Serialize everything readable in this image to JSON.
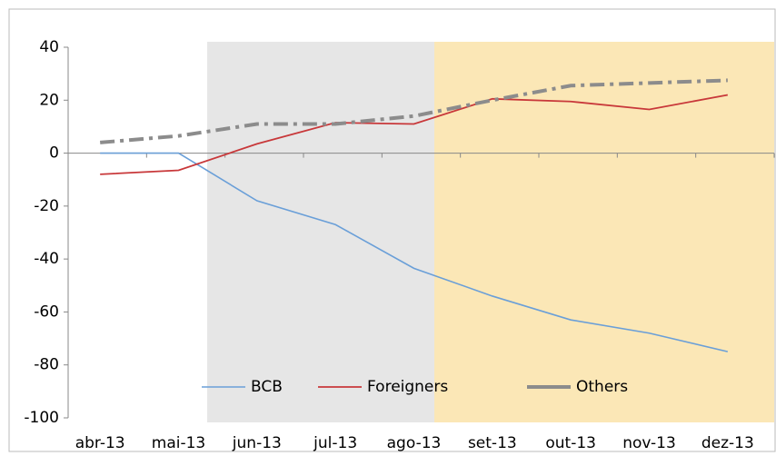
{
  "chart_data": {
    "type": "line",
    "categories": [
      "abr-13",
      "mai-13",
      "jun-13",
      "jul-13",
      "ago-13",
      "set-13",
      "out-13",
      "nov-13",
      "dez-13"
    ],
    "series": [
      {
        "name": "BCB",
        "color": "#6a9fd8",
        "values": [
          0,
          0,
          -18,
          -27,
          -43.5,
          -54,
          -63,
          -68,
          -75
        ]
      },
      {
        "name": "Foreigners",
        "color": "#c8383a",
        "values": [
          -8,
          -6.5,
          3.5,
          11.5,
          11,
          20.5,
          19.5,
          16.5,
          22
        ]
      },
      {
        "name": "Others",
        "color": "#8c8c8c",
        "values": [
          4,
          6.5,
          11,
          11,
          14,
          20,
          25.5,
          26.5,
          27.5
        ]
      }
    ],
    "ylim": [
      -100,
      40
    ],
    "yticks": [
      -100,
      -80,
      -60,
      -40,
      -20,
      0,
      20,
      40
    ],
    "grid": false
  }
}
